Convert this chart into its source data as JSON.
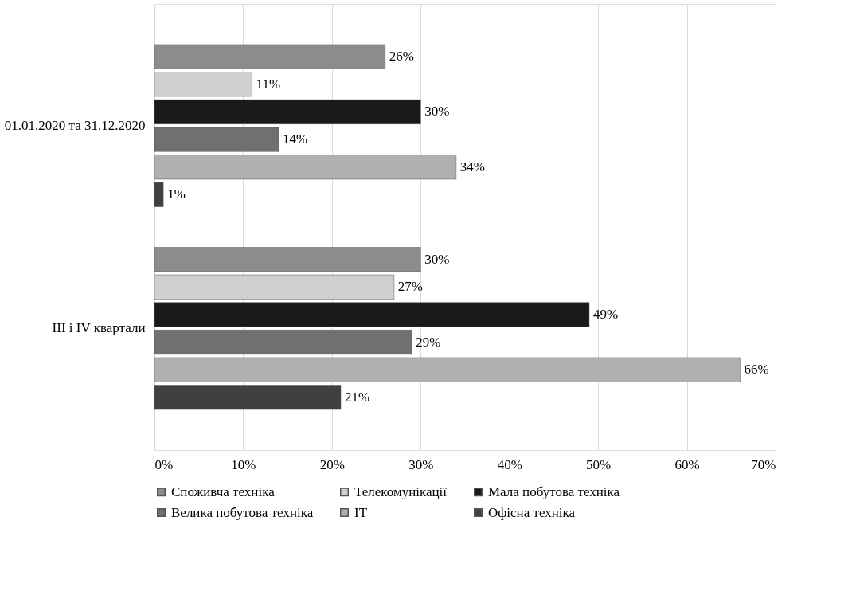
{
  "chart_data": {
    "type": "bar",
    "orientation": "horizontal",
    "categories": [
      "01.01.2020 та 31.12.2020",
      "III і IV квартали"
    ],
    "series": [
      {
        "name": "Споживча техніка",
        "color": "#8c8c8c",
        "values": [
          26,
          30
        ],
        "value_labels": [
          "26%",
          "30%"
        ]
      },
      {
        "name": "Телекомунікації",
        "color": "#d0d0d0",
        "values": [
          11,
          27
        ],
        "value_labels": [
          "11%",
          "27%"
        ]
      },
      {
        "name": "Мала побутова техніка",
        "color": "#1a1a1a",
        "values": [
          30,
          49
        ],
        "value_labels": [
          "30%",
          "49%"
        ]
      },
      {
        "name": "Велика побутова техніка",
        "color": "#707070",
        "values": [
          14,
          29
        ],
        "value_labels": [
          "14%",
          "29%"
        ]
      },
      {
        "name": "IT",
        "color": "#b0b0b0",
        "values": [
          34,
          66
        ],
        "value_labels": [
          "34%",
          "66%"
        ]
      },
      {
        "name": "Офісна техніка",
        "color": "#404040",
        "values": [
          1,
          21
        ],
        "value_labels": [
          "1%",
          "21%"
        ]
      }
    ],
    "xlim": [
      0,
      70
    ],
    "xticks": [
      {
        "value": 0,
        "label": "0%"
      },
      {
        "value": 10,
        "label": "10%"
      },
      {
        "value": 20,
        "label": "20%"
      },
      {
        "value": 30,
        "label": "30%"
      },
      {
        "value": 40,
        "label": "40%"
      },
      {
        "value": 50,
        "label": "50%"
      },
      {
        "value": 60,
        "label": "60%"
      },
      {
        "value": 70,
        "label": "70%"
      }
    ],
    "grid": "x",
    "legend": "bottom"
  }
}
